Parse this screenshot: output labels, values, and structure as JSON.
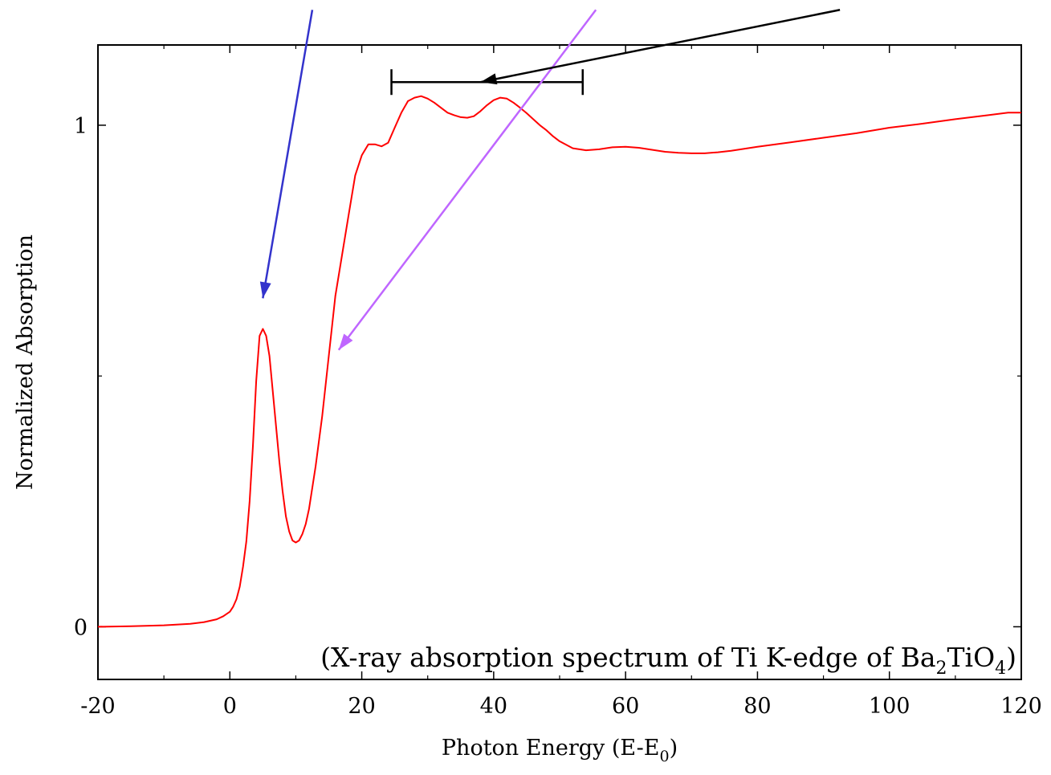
{
  "chart_data": {
    "type": "line",
    "title": "",
    "xlabel": "Photon Energy (E-E0)",
    "xlabel_parts": {
      "main": "Photon Energy (E-E",
      "sub": "0",
      "close": ")"
    },
    "ylabel": "Normalized Absorption",
    "xlim": [
      -20,
      120
    ],
    "ylim": [
      -0.105,
      1.16
    ],
    "x_ticks": [
      -20,
      0,
      20,
      40,
      60,
      80,
      100,
      120
    ],
    "y_ticks": [
      0,
      1
    ],
    "y_minor_ticks": [
      0.5
    ],
    "x_minor_step": 10,
    "grid": false,
    "annotation": {
      "text": "(X-ray absorption spectrum of Ti K-edge of Ba2TiO4)",
      "parts": [
        "(X-ray absorption spectrum of Ti K-edge of Ba",
        "2",
        "TiO",
        "4",
        ")"
      ]
    },
    "series": [
      {
        "color": "#ff0000",
        "x": [
          -20,
          -15,
          -10,
          -6,
          -4,
          -2,
          -1,
          0,
          0.5,
          1,
          1.5,
          2,
          2.5,
          3,
          3.5,
          4,
          4.5,
          5,
          5.5,
          6,
          6.5,
          7,
          7.5,
          8,
          8.5,
          9,
          9.5,
          10,
          10.5,
          11,
          11.5,
          12,
          13,
          14,
          15,
          16,
          17,
          18,
          19,
          20,
          21,
          22,
          23,
          24,
          25,
          26,
          27,
          28,
          29,
          30,
          31,
          32,
          33,
          34,
          35,
          36,
          37,
          38,
          39,
          40,
          41,
          42,
          43,
          44,
          45,
          46,
          47,
          48,
          49,
          50,
          52,
          54,
          56,
          58,
          60,
          62,
          64,
          66,
          68,
          70,
          72,
          74,
          76,
          78,
          80,
          85,
          90,
          95,
          100,
          105,
          110,
          115,
          118,
          120
        ],
        "y": [
          0.0,
          0.001,
          0.003,
          0.006,
          0.009,
          0.015,
          0.021,
          0.03,
          0.04,
          0.055,
          0.08,
          0.12,
          0.17,
          0.25,
          0.36,
          0.49,
          0.58,
          0.594,
          0.58,
          0.54,
          0.47,
          0.4,
          0.33,
          0.27,
          0.22,
          0.19,
          0.172,
          0.168,
          0.172,
          0.185,
          0.205,
          0.235,
          0.32,
          0.42,
          0.54,
          0.66,
          0.74,
          0.82,
          0.9,
          0.94,
          0.962,
          0.962,
          0.958,
          0.965,
          0.995,
          1.025,
          1.048,
          1.055,
          1.058,
          1.053,
          1.045,
          1.035,
          1.025,
          1.02,
          1.016,
          1.015,
          1.018,
          1.028,
          1.04,
          1.05,
          1.055,
          1.053,
          1.045,
          1.035,
          1.024,
          1.012,
          1.0,
          0.99,
          0.978,
          0.968,
          0.954,
          0.95,
          0.952,
          0.956,
          0.957,
          0.955,
          0.951,
          0.947,
          0.945,
          0.944,
          0.944,
          0.946,
          0.949,
          0.953,
          0.957,
          0.966,
          0.975,
          0.984,
          0.995,
          1.003,
          1.012,
          1.02,
          1.025,
          1.025
        ]
      }
    ],
    "markers": {
      "range_bar": {
        "x_start": 24.5,
        "x_end": 53.5,
        "y": 1.086
      },
      "arrows": [
        {
          "color": "#3333cc",
          "from": [
            12.5,
            1.23
          ],
          "to": [
            5,
            0.655
          ]
        },
        {
          "color": "#bf66ff",
          "from": [
            55.5,
            1.23
          ],
          "to": [
            16.5,
            0.552
          ]
        },
        {
          "color": "#000000",
          "from": [
            92.5,
            1.23
          ],
          "to": [
            38,
            1.086
          ]
        }
      ]
    }
  }
}
